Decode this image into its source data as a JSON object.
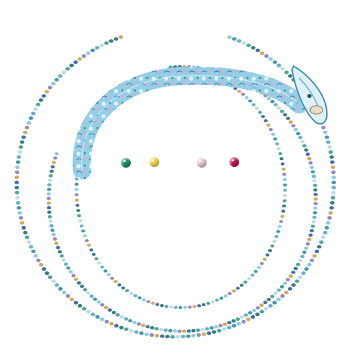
{
  "artwork": {
    "subject": "beaded-spiral-serpent",
    "background_color": "#ffffff",
    "bead_colors": [
      "#2e8fa8",
      "#1f6f7a",
      "#7ec8d8",
      "#3b9e86",
      "#8c7bb5",
      "#b7d7e4",
      "#c9a24a",
      "#5aa7c9",
      "#2f5f9e"
    ],
    "gems": [
      {
        "name": "emerald",
        "color": "#1b8a6b"
      },
      {
        "name": "citrine",
        "color": "#f2cf3a"
      },
      {
        "name": "rose-quartz",
        "color": "#e6c3d3"
      },
      {
        "name": "ruby",
        "color": "#c2124e"
      }
    ]
  }
}
